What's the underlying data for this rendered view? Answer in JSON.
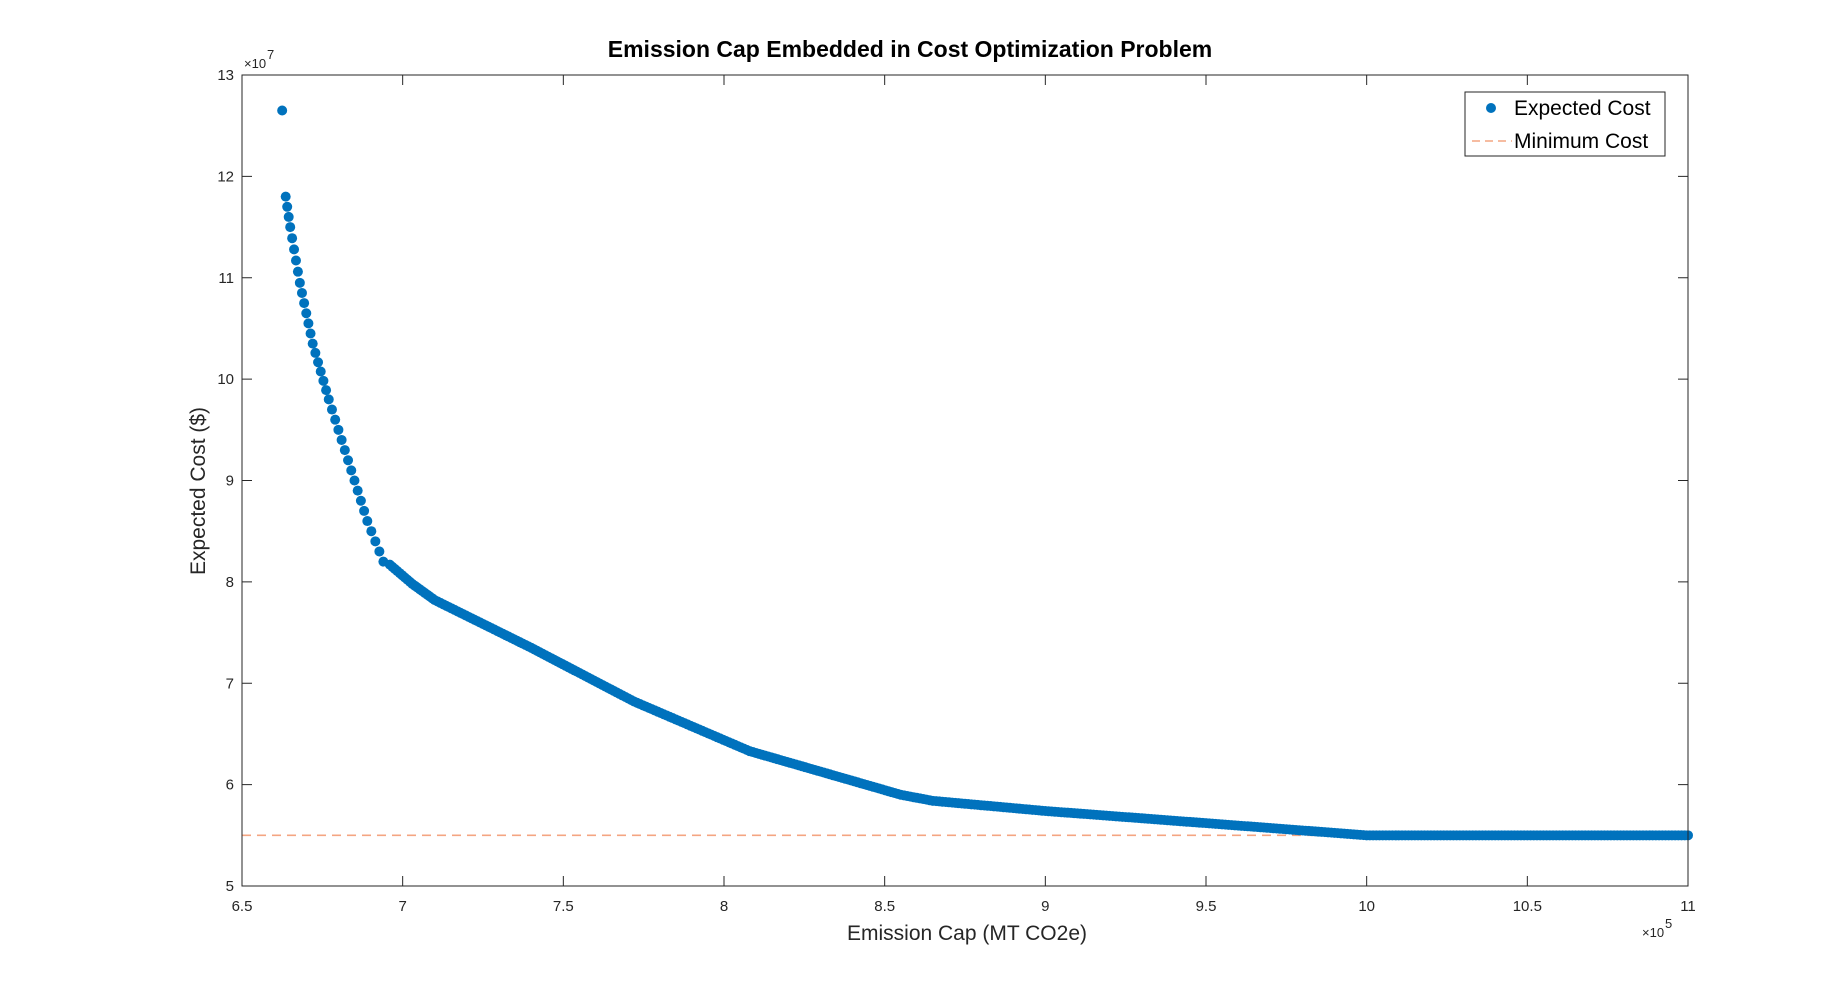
{
  "chart_data": {
    "type": "scatter",
    "title": "Emission Cap Embedded in Cost Optimization Problem",
    "xlabel": "Emission Cap (MT CO2e)",
    "ylabel": "Expected Cost ($)",
    "x_exponent_label": "×10",
    "x_exponent_power": "5",
    "y_exponent_label": "×10",
    "y_exponent_power": "7",
    "xlim": [
      6.5,
      11
    ],
    "ylim": [
      5,
      13
    ],
    "x_ticks": [
      6.5,
      7,
      7.5,
      8,
      8.5,
      9,
      9.5,
      10,
      10.5,
      11
    ],
    "x_tick_labels": [
      "6.5",
      "7",
      "7.5",
      "8",
      "8.5",
      "9",
      "9.5",
      "10",
      "10.5",
      "11"
    ],
    "y_ticks": [
      5,
      6,
      7,
      8,
      9,
      10,
      11,
      12,
      13
    ],
    "y_tick_labels": [
      "5",
      "6",
      "7",
      "8",
      "9",
      "10",
      "11",
      "12",
      "13"
    ],
    "grid": false,
    "legend_position": "top-right",
    "series": [
      {
        "name": "Expected Cost",
        "style": "markers",
        "color": "#0072BD",
        "curve_points": [
          [
            6.625,
            12.65
          ],
          [
            6.636,
            11.8
          ],
          [
            6.65,
            11.5
          ],
          [
            6.68,
            10.95
          ],
          [
            6.72,
            10.35
          ],
          [
            6.77,
            9.8
          ],
          [
            6.83,
            9.2
          ],
          [
            6.89,
            8.6
          ],
          [
            6.94,
            8.2
          ],
          [
            6.96,
            8.17
          ],
          [
            7.03,
            7.98
          ],
          [
            7.1,
            7.82
          ],
          [
            7.4,
            7.35
          ],
          [
            7.72,
            6.82
          ],
          [
            8.08,
            6.33
          ],
          [
            8.55,
            5.9
          ],
          [
            8.65,
            5.84
          ],
          [
            9.0,
            5.74
          ],
          [
            9.5,
            5.62
          ],
          [
            10.0,
            5.5
          ],
          [
            11.0,
            5.5
          ]
        ]
      },
      {
        "name": "Minimum Cost",
        "style": "dashed",
        "color": "#F4A582",
        "y": 5.5
      }
    ]
  }
}
